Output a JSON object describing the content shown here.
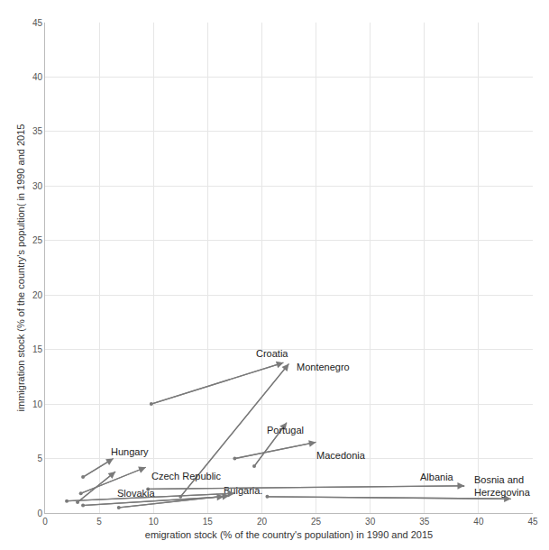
{
  "chart_data": {
    "type": "arrow",
    "x_label": "emigration stock (% of the country's population) in 1990 and 2015",
    "y_label": "immigration stock (% of the country's popultion( in 1990 and 2015",
    "xlim": [
      0,
      45
    ],
    "ylim": [
      0,
      45
    ],
    "xticks": [
      0,
      5,
      10,
      15,
      20,
      25,
      30,
      35,
      40,
      45
    ],
    "yticks": [
      0,
      5,
      10,
      15,
      20,
      25,
      30,
      35,
      40,
      45
    ],
    "grid": true,
    "color": "#7a7a7a",
    "arrows": [
      {
        "label": [
          "Croatia"
        ],
        "from": [
          9.8,
          10
        ],
        "to": [
          22,
          13.8
        ]
      },
      {
        "label": [
          "Montenegro"
        ],
        "from": [
          12.5,
          1.5
        ],
        "to": [
          22.5,
          13.7
        ]
      },
      {
        "label": [
          "Portugal"
        ],
        "from": [
          19.3,
          4.3
        ],
        "to": [
          22.3,
          8.3
        ]
      },
      {
        "label": [
          "Macedonia"
        ],
        "from": [
          17.5,
          5
        ],
        "to": [
          25,
          6.5
        ]
      },
      {
        "label": [
          "Hungary"
        ],
        "from": [
          3.5,
          3.3
        ],
        "to": [
          6.3,
          5
        ]
      },
      {
        "label": [
          "Czech Republic"
        ],
        "from": [
          3.3,
          1.8
        ],
        "to": [
          9.3,
          4.2
        ]
      },
      {
        "label": [
          "Slovakia"
        ],
        "from": [
          3,
          1
        ],
        "to": [
          6.5,
          3.8
        ]
      },
      {
        "label": [
          "Bulgaria."
        ],
        "from": [
          6.8,
          0.5
        ],
        "to": [
          17,
          1.6
        ]
      },
      {
        "label": [
          "Albania"
        ],
        "from": [
          9.5,
          2.2
        ],
        "to": [
          38.7,
          2.5
        ]
      },
      {
        "label": [
          "Bosnia and",
          "Herzegovina"
        ],
        "from": [
          20.5,
          1.5
        ],
        "to": [
          43,
          1.3
        ]
      },
      {
        "from": [
          2,
          1.1
        ],
        "to": [
          17.5,
          1.8
        ]
      },
      {
        "from": [
          3.5,
          0.7
        ],
        "to": [
          16.5,
          1.5
        ]
      }
    ]
  }
}
